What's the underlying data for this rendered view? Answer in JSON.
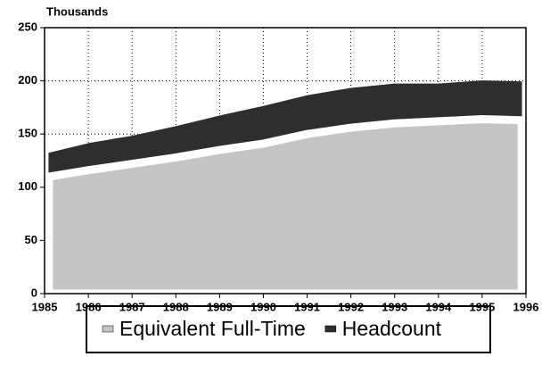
{
  "chart_data": {
    "type": "area",
    "y_unit_label": "Thousands",
    "x": [
      1985.1,
      1986,
      1987,
      1988,
      1989,
      1990,
      1991,
      1992,
      1993,
      1994,
      1995,
      1995.9
    ],
    "series": [
      {
        "name": "Headcount",
        "color": "#2e2e2e",
        "values": [
          132,
          141,
          148,
          157,
          167,
          176,
          186,
          193,
          197,
          197,
          200,
          199
        ]
      },
      {
        "name": "Equivalent Full-Time",
        "color": "#c4c4c4",
        "values": [
          110,
          116,
          122,
          128,
          135,
          141,
          150,
          156,
          160,
          162,
          164,
          163
        ]
      }
    ],
    "legend_order": [
      1,
      0
    ],
    "xlim": [
      1985,
      1996
    ],
    "xticks": [
      1985,
      1986,
      1987,
      1988,
      1989,
      1990,
      1991,
      1992,
      1993,
      1994,
      1995,
      1996
    ],
    "ylim": [
      0,
      250
    ],
    "yticks": [
      0,
      50,
      100,
      150,
      200,
      250
    ],
    "grid": true,
    "legend": "bottom"
  }
}
